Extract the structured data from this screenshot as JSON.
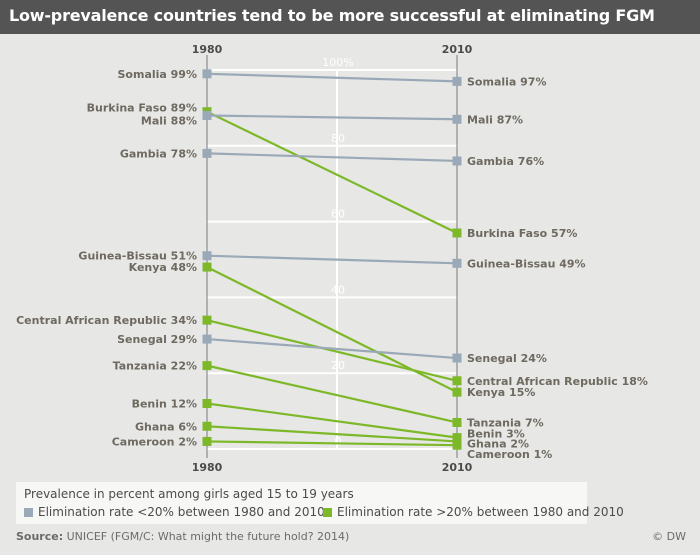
{
  "header": {
    "title": "Low-prevalence countries tend to be more successful at eliminating FGM"
  },
  "chart_data": {
    "type": "line",
    "x": [
      "1980",
      "2010"
    ],
    "ylim": [
      0,
      100
    ],
    "y_ticks": [
      "0",
      "20",
      "40",
      "60",
      "80",
      "100%"
    ],
    "colors": {
      "below20": "#9aa9b7",
      "above20": "#7db828",
      "axis": "#7a7a7a",
      "grid": "#ffffff",
      "text": "#6e6a60"
    },
    "series": [
      {
        "name": "Somalia",
        "group": "below20",
        "values": [
          99,
          97
        ],
        "label_1980": "Somalia 99%",
        "label_2010": "Somalia 97%"
      },
      {
        "name": "Burkina Faso",
        "group": "above20",
        "values": [
          89,
          57
        ],
        "label_1980": "Burkina Faso 89%",
        "label_2010": "Burkina Faso 57%"
      },
      {
        "name": "Mali",
        "group": "below20",
        "values": [
          88,
          87
        ],
        "label_1980": "Mali 88%",
        "label_2010": "Mali 87%"
      },
      {
        "name": "Gambia",
        "group": "below20",
        "values": [
          78,
          76
        ],
        "label_1980": "Gambia 78%",
        "label_2010": "Gambia 76%"
      },
      {
        "name": "Guinea-Bissau",
        "group": "below20",
        "values": [
          51,
          49
        ],
        "label_1980": "Guinea-Bissau 51%",
        "label_2010": "Guinea-Bissau 49%"
      },
      {
        "name": "Kenya",
        "group": "above20",
        "values": [
          48,
          15
        ],
        "label_1980": "Kenya 48%",
        "label_2010": "Kenya 15%"
      },
      {
        "name": "Central African Republic",
        "group": "above20",
        "values": [
          34,
          18
        ],
        "label_1980": "Central African Republic 34%",
        "label_2010": "Central African Republic 18%"
      },
      {
        "name": "Senegal",
        "group": "below20",
        "values": [
          29,
          24
        ],
        "label_1980": "Senegal 29%",
        "label_2010": "Senegal 24%"
      },
      {
        "name": "Tanzania",
        "group": "above20",
        "values": [
          22,
          7
        ],
        "label_1980": "Tanzania 22%",
        "label_2010": "Tanzania 7%"
      },
      {
        "name": "Benin",
        "group": "above20",
        "values": [
          12,
          3
        ],
        "label_1980": "Benin 12%",
        "label_2010": "Benin 3%"
      },
      {
        "name": "Ghana",
        "group": "above20",
        "values": [
          6,
          2
        ],
        "label_1980": "Ghana 6%",
        "label_2010": "Ghana 2%"
      },
      {
        "name": "Cameroon",
        "group": "above20",
        "values": [
          2,
          1
        ],
        "label_1980": "Cameroon 2%",
        "label_2010": "Cameroon 1%"
      }
    ]
  },
  "legend": {
    "title": "Prevalence in percent among girls aged 15 to 19 years",
    "below20": "Elimination rate <20% between 1980 and 2010",
    "above20": "Elimination rate >20% between 1980 and 2010"
  },
  "footer": {
    "source_label": "Source:",
    "source_text": " UNICEF (FGM/C: What might the future hold? 2014)",
    "credit": "© DW"
  }
}
